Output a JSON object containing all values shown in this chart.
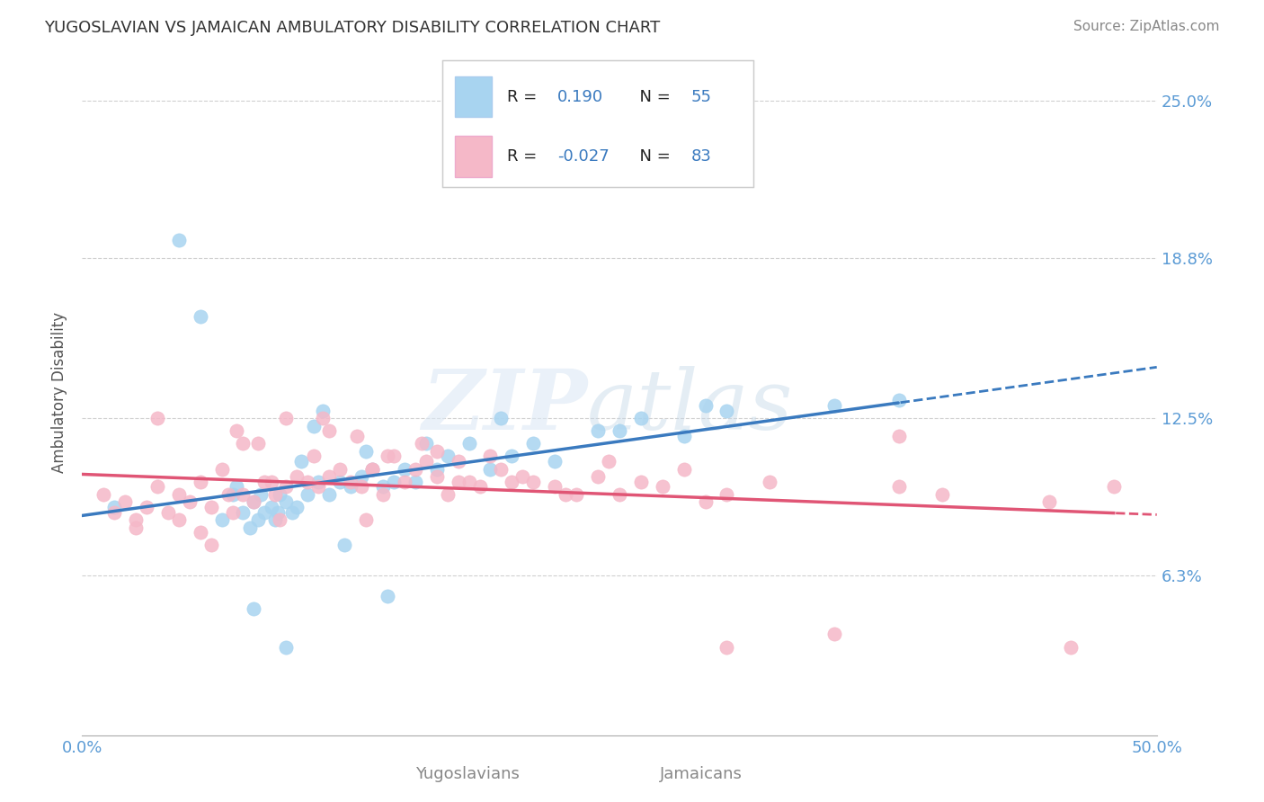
{
  "title": "YUGOSLAVIAN VS JAMAICAN AMBULATORY DISABILITY CORRELATION CHART",
  "source": "Source: ZipAtlas.com",
  "ylabel": "Ambulatory Disability",
  "y_ticks": [
    6.3,
    12.5,
    18.8,
    25.0
  ],
  "y_tick_labels": [
    "6.3%",
    "12.5%",
    "18.8%",
    "25.0%"
  ],
  "blue_color": "#a8d4f0",
  "pink_color": "#f5b8c8",
  "blue_line_color": "#3a7abf",
  "pink_line_color": "#e05575",
  "watermark_zip": "ZIP",
  "watermark_atlas": "atlas",
  "background_color": "#ffffff",
  "grid_color": "#d0d0d0",
  "x_min": 0.0,
  "x_max": 50.0,
  "y_min": 0.0,
  "y_max": 27.0,
  "blue_scatter_x": [
    1.5,
    4.5,
    5.5,
    6.5,
    7.0,
    7.5,
    7.8,
    8.0,
    8.2,
    8.5,
    8.8,
    9.0,
    9.2,
    9.5,
    9.8,
    10.0,
    10.5,
    11.0,
    11.5,
    12.0,
    12.5,
    13.0,
    13.5,
    14.0,
    14.5,
    15.0,
    15.5,
    16.0,
    17.0,
    18.0,
    19.0,
    20.0,
    21.0,
    22.0,
    24.0,
    26.0,
    28.0,
    30.0,
    35.0,
    38.0,
    7.2,
    8.3,
    9.1,
    10.2,
    11.2,
    13.2,
    16.5,
    19.5,
    25.0,
    29.0,
    9.5,
    14.2,
    8.0,
    10.8,
    12.2
  ],
  "blue_scatter_y": [
    9.0,
    19.5,
    16.5,
    8.5,
    9.5,
    8.8,
    8.2,
    9.2,
    8.5,
    8.8,
    9.0,
    8.5,
    9.5,
    9.2,
    8.8,
    9.0,
    9.5,
    10.0,
    9.5,
    10.0,
    9.8,
    10.2,
    10.5,
    9.8,
    10.0,
    10.5,
    10.0,
    11.5,
    11.0,
    11.5,
    10.5,
    11.0,
    11.5,
    10.8,
    12.0,
    12.5,
    11.8,
    12.8,
    13.0,
    13.2,
    9.8,
    9.5,
    8.8,
    10.8,
    12.8,
    11.2,
    10.5,
    12.5,
    12.0,
    13.0,
    3.5,
    5.5,
    5.0,
    12.2,
    7.5
  ],
  "pink_scatter_x": [
    1.0,
    1.5,
    2.0,
    2.5,
    3.0,
    3.5,
    4.0,
    4.5,
    5.0,
    5.5,
    6.0,
    6.5,
    7.0,
    7.5,
    8.0,
    8.5,
    9.0,
    9.5,
    10.0,
    10.5,
    11.0,
    11.5,
    12.0,
    12.5,
    13.0,
    13.5,
    14.0,
    14.5,
    15.0,
    15.5,
    16.0,
    16.5,
    17.0,
    17.5,
    18.0,
    18.5,
    19.0,
    19.5,
    20.0,
    21.0,
    22.0,
    23.0,
    24.0,
    25.0,
    26.0,
    27.0,
    28.0,
    29.0,
    30.0,
    32.0,
    35.0,
    38.0,
    40.0,
    45.0,
    48.0,
    7.2,
    8.2,
    9.5,
    11.2,
    12.8,
    14.2,
    15.8,
    6.8,
    10.8,
    13.5,
    16.5,
    20.5,
    24.5,
    4.5,
    3.5,
    5.5,
    8.8,
    11.5,
    17.5,
    22.5,
    30.0,
    7.5,
    9.2,
    13.2,
    38.0,
    46.0,
    2.5,
    6.0
  ],
  "pink_scatter_y": [
    9.5,
    8.8,
    9.2,
    8.5,
    9.0,
    9.8,
    8.8,
    9.5,
    9.2,
    10.0,
    9.0,
    10.5,
    8.8,
    9.5,
    9.2,
    10.0,
    9.5,
    9.8,
    10.2,
    10.0,
    9.8,
    10.2,
    10.5,
    10.0,
    9.8,
    10.5,
    9.5,
    11.0,
    10.0,
    10.5,
    10.8,
    10.2,
    9.5,
    10.8,
    10.0,
    9.8,
    11.0,
    10.5,
    10.0,
    10.0,
    9.8,
    9.5,
    10.2,
    9.5,
    10.0,
    9.8,
    10.5,
    9.2,
    9.5,
    10.0,
    4.0,
    9.8,
    9.5,
    9.2,
    9.8,
    12.0,
    11.5,
    12.5,
    12.5,
    11.8,
    11.0,
    11.5,
    9.5,
    11.0,
    10.5,
    11.2,
    10.2,
    10.8,
    8.5,
    12.5,
    8.0,
    10.0,
    12.0,
    10.0,
    9.5,
    3.5,
    11.5,
    8.5,
    8.5,
    11.8,
    3.5,
    8.2,
    7.5
  ]
}
